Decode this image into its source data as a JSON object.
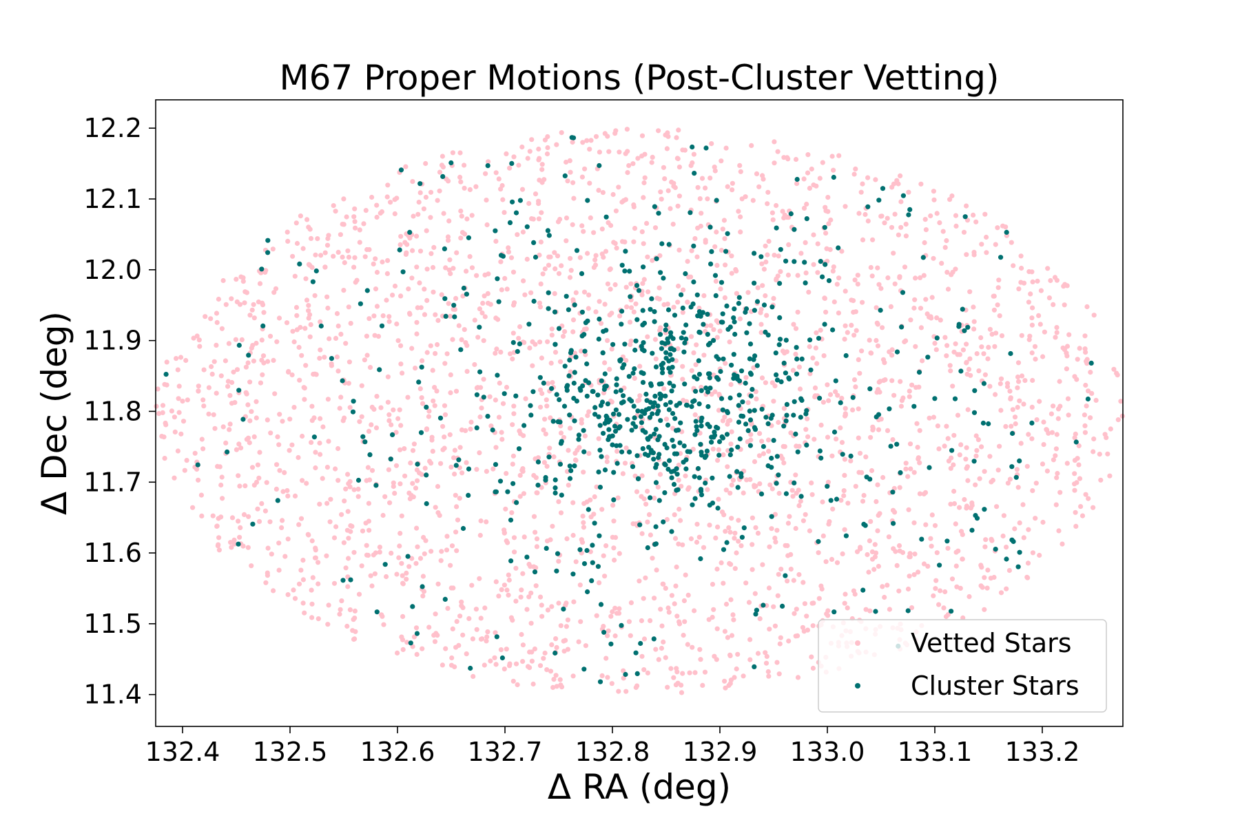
{
  "chart_data": {
    "type": "scatter",
    "title": "M67 Proper Motions (Post-Cluster Vetting)",
    "xlabel": "Δ RA (deg)",
    "ylabel": "Δ Dec (deg)",
    "xlim": [
      132.375,
      133.275
    ],
    "ylim": [
      11.355,
      12.24
    ],
    "xticks": [
      "132.4",
      "132.5",
      "132.6",
      "132.7",
      "132.8",
      "132.9",
      "133.0",
      "133.1",
      "133.2"
    ],
    "yticks": [
      "11.4",
      "11.5",
      "11.6",
      "11.7",
      "11.8",
      "11.9",
      "12.0",
      "12.1",
      "12.2"
    ],
    "grid": false,
    "legend_position": "lower-right",
    "field": {
      "center_ra": 132.825,
      "center_dec": 11.8,
      "radius_ra": 0.45,
      "radius_dec": 0.4
    },
    "cluster_core": {
      "ra": 132.85,
      "dec": 11.815
    },
    "series": [
      {
        "name": "Vetted Stars",
        "color": "#ffc0cb",
        "count": 2600
      },
      {
        "name": "Cluster Stars",
        "color": "#007070",
        "count": 820
      }
    ]
  }
}
